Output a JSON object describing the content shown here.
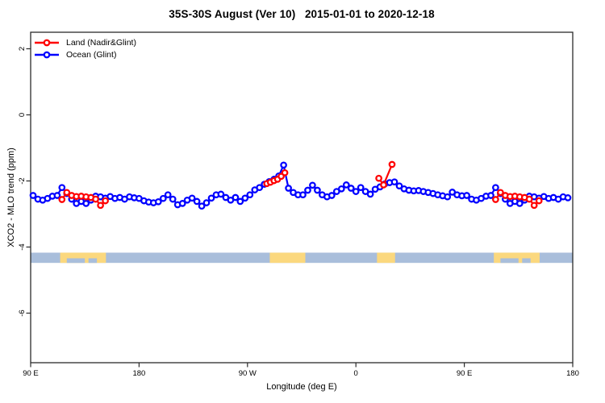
{
  "title": "35S-30S August (Ver 10)   2015-01-01 to 2020-12-18",
  "legend": {
    "items": [
      {
        "label": "Land (Nadir&Glint)",
        "color": "#FF0000"
      },
      {
        "label": "Ocean (Glint)",
        "color": "#0000FF"
      }
    ],
    "position": "top-left"
  },
  "axes": {
    "x": {
      "title": "Longitude (deg E)",
      "range_display_deg": [
        90,
        540
      ],
      "ticks": [
        {
          "pos": 90,
          "label": "90 E"
        },
        {
          "pos": 180,
          "label": "180"
        },
        {
          "pos": 270,
          "label": "90 W"
        },
        {
          "pos": 360,
          "label": "0"
        },
        {
          "pos": 450,
          "label": "90 E"
        },
        {
          "pos": 540,
          "label": "180"
        }
      ]
    },
    "y": {
      "title": "XCO2 - MLO trend (ppm)",
      "range": [
        -7.5,
        2.5
      ],
      "ticks": [
        {
          "pos": 2,
          "label": "2"
        },
        {
          "pos": 0,
          "label": "0"
        },
        {
          "pos": -2,
          "label": "-2"
        },
        {
          "pos": -4,
          "label": "-4"
        },
        {
          "pos": -6,
          "label": "-6"
        }
      ]
    }
  },
  "chart_data": {
    "type": "line",
    "title": "35S-30S August (Ver 10)   2015-01-01 to 2020-12-18",
    "xlabel": "Longitude (deg E)",
    "ylabel": "XCO2 - MLO trend (ppm)",
    "xlim_display_deg": [
      90,
      540
    ],
    "ylim": [
      -7.5,
      2.5
    ],
    "grid": false,
    "axis_note": "x axis wraps the globe: 90E -> 180 -> 90W -> 0 -> 90E -> 180; display deg >180 equals (deg-360) in deg E; segment 450-540 repeats segment 90-180",
    "marker": "open-circle",
    "series": [
      {
        "name": "Ocean (Glint)",
        "color": "#0000FF",
        "points": [
          [
            92,
            -2.44
          ],
          [
            96,
            -2.55
          ],
          [
            100,
            -2.58
          ],
          [
            104,
            -2.53
          ],
          [
            108,
            -2.46
          ],
          [
            112,
            -2.44
          ],
          [
            116,
            -2.2
          ],
          [
            120,
            -2.38
          ],
          [
            124,
            -2.55
          ],
          [
            128,
            -2.68
          ],
          [
            132,
            -2.62
          ],
          [
            136,
            -2.68
          ],
          [
            140,
            -2.58
          ],
          [
            144,
            -2.46
          ],
          [
            148,
            -2.48
          ],
          [
            152,
            -2.52
          ],
          [
            156,
            -2.47
          ],
          [
            160,
            -2.53
          ],
          [
            164,
            -2.5
          ],
          [
            168,
            -2.55
          ],
          [
            172,
            -2.48
          ],
          [
            176,
            -2.51
          ],
          [
            180,
            -2.53
          ],
          [
            184,
            -2.6
          ],
          [
            188,
            -2.64
          ],
          [
            192,
            -2.66
          ],
          [
            196,
            -2.63
          ],
          [
            200,
            -2.53
          ],
          [
            204,
            -2.42
          ],
          [
            208,
            -2.55
          ],
          [
            212,
            -2.72
          ],
          [
            216,
            -2.68
          ],
          [
            220,
            -2.58
          ],
          [
            224,
            -2.52
          ],
          [
            228,
            -2.62
          ],
          [
            232,
            -2.76
          ],
          [
            236,
            -2.66
          ],
          [
            240,
            -2.52
          ],
          [
            244,
            -2.42
          ],
          [
            248,
            -2.4
          ],
          [
            252,
            -2.5
          ],
          [
            256,
            -2.58
          ],
          [
            260,
            -2.5
          ],
          [
            264,
            -2.62
          ],
          [
            268,
            -2.52
          ],
          [
            272,
            -2.42
          ],
          [
            276,
            -2.27
          ],
          [
            280,
            -2.2
          ],
          [
            284,
            -2.1
          ],
          [
            288,
            -2.02
          ],
          [
            292,
            -1.95
          ],
          [
            296,
            -1.85
          ],
          [
            300,
            -1.52
          ],
          [
            304,
            -2.22
          ],
          [
            308,
            -2.35
          ],
          [
            312,
            -2.42
          ],
          [
            316,
            -2.42
          ],
          [
            320,
            -2.28
          ],
          [
            324,
            -2.13
          ],
          [
            328,
            -2.28
          ],
          [
            332,
            -2.42
          ],
          [
            336,
            -2.48
          ],
          [
            340,
            -2.44
          ],
          [
            344,
            -2.32
          ],
          [
            348,
            -2.24
          ],
          [
            352,
            -2.12
          ],
          [
            356,
            -2.22
          ],
          [
            360,
            -2.32
          ],
          [
            364,
            -2.2
          ],
          [
            368,
            -2.32
          ],
          [
            372,
            -2.4
          ],
          [
            376,
            -2.25
          ],
          [
            380,
            -2.18
          ],
          [
            384,
            -2.09
          ],
          [
            388,
            -2.05
          ],
          [
            392,
            -2.03
          ],
          [
            396,
            -2.15
          ],
          [
            400,
            -2.24
          ],
          [
            404,
            -2.28
          ],
          [
            408,
            -2.3
          ],
          [
            412,
            -2.29
          ],
          [
            416,
            -2.32
          ],
          [
            420,
            -2.35
          ],
          [
            424,
            -2.38
          ],
          [
            428,
            -2.42
          ],
          [
            432,
            -2.45
          ],
          [
            436,
            -2.48
          ],
          [
            440,
            -2.34
          ],
          [
            444,
            -2.42
          ],
          [
            448,
            -2.45
          ],
          [
            452,
            -2.44
          ],
          [
            456,
            -2.55
          ],
          [
            460,
            -2.58
          ],
          [
            464,
            -2.53
          ],
          [
            468,
            -2.46
          ],
          [
            472,
            -2.44
          ],
          [
            476,
            -2.2
          ],
          [
            480,
            -2.38
          ],
          [
            484,
            -2.55
          ],
          [
            488,
            -2.68
          ],
          [
            492,
            -2.62
          ],
          [
            496,
            -2.68
          ],
          [
            500,
            -2.58
          ],
          [
            504,
            -2.46
          ],
          [
            508,
            -2.48
          ],
          [
            512,
            -2.52
          ],
          [
            516,
            -2.47
          ],
          [
            520,
            -2.53
          ],
          [
            524,
            -2.5
          ],
          [
            528,
            -2.55
          ],
          [
            532,
            -2.48
          ],
          [
            536,
            -2.51
          ]
        ]
      },
      {
        "name": "Land (Nadir&Glint)",
        "color": "#FF0000",
        "clusters": [
          [
            [
              116,
              -2.56
            ],
            [
              120,
              -2.35
            ],
            [
              124,
              -2.44
            ],
            [
              128,
              -2.47
            ],
            [
              132,
              -2.46
            ],
            [
              136,
              -2.48
            ],
            [
              140,
              -2.5
            ],
            [
              144,
              -2.55
            ],
            [
              148,
              -2.74
            ],
            [
              152,
              -2.6
            ]
          ],
          [
            [
              286,
              -2.08
            ],
            [
              289,
              -2.04
            ],
            [
              292,
              -1.99
            ],
            [
              295,
              -1.95
            ],
            [
              298,
              -1.86
            ],
            [
              301,
              -1.75
            ]
          ],
          [
            [
              379,
              -1.92
            ],
            [
              383,
              -2.12
            ],
            [
              390,
              -1.5
            ]
          ],
          [
            [
              476,
              -2.56
            ],
            [
              480,
              -2.35
            ],
            [
              484,
              -2.44
            ],
            [
              488,
              -2.47
            ],
            [
              492,
              -2.46
            ],
            [
              496,
              -2.48
            ],
            [
              500,
              -2.5
            ],
            [
              504,
              -2.55
            ],
            [
              508,
              -2.74
            ],
            [
              512,
              -2.6
            ]
          ]
        ]
      }
    ],
    "map_strip": {
      "description": "land/ocean map band for 35S-30S latitude strip",
      "y_top": -4.17,
      "y_bottom": -4.48,
      "ocean_color": "#A9BEDB",
      "land_color": "#FBD87E",
      "land_patches_deg": [
        [
          114.5,
          152.5
        ],
        [
          288.5,
          318
        ],
        [
          377.5,
          392.5
        ],
        [
          474.5,
          512.5
        ]
      ],
      "ocean_notches_deg": [
        [
          120,
          135
        ],
        [
          138,
          145
        ],
        [
          480,
          495
        ],
        [
          498,
          505
        ]
      ]
    }
  },
  "style": {
    "box_color": "#2B2B2B",
    "marker_fill": "#FFFFFF",
    "background": "#FFFFFF"
  }
}
